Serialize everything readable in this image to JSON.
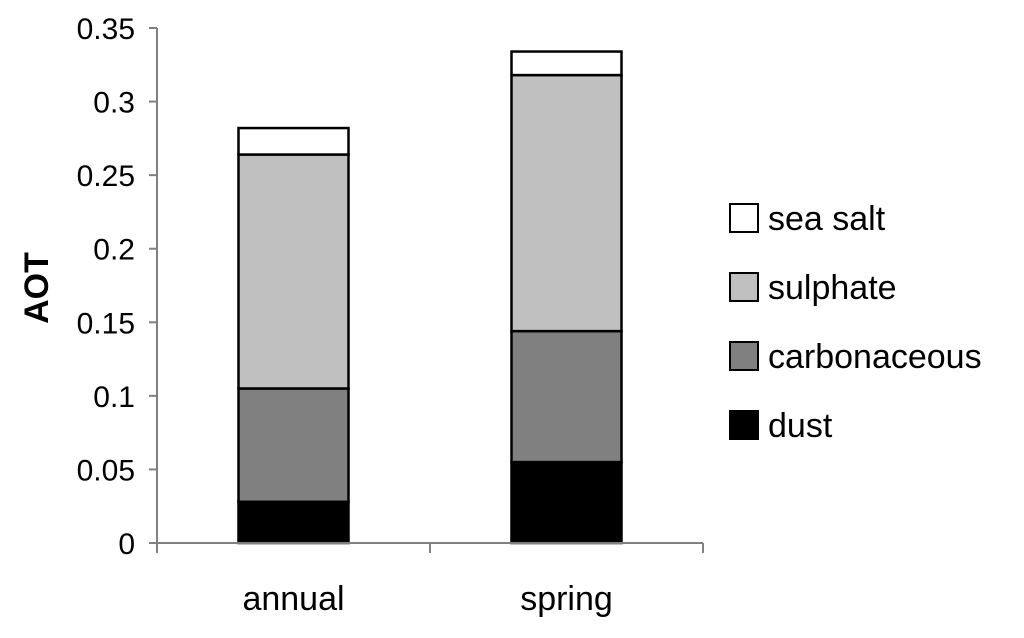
{
  "chart_data": {
    "type": "bar",
    "stacked": true,
    "categories": [
      "annual",
      "spring"
    ],
    "series": [
      {
        "name": "dust",
        "color": "#000000",
        "values": [
          0.028,
          0.055
        ]
      },
      {
        "name": "carbonaceous",
        "color": "#808080",
        "values": [
          0.077,
          0.089
        ]
      },
      {
        "name": "sulphate",
        "color": "#c0c0c0",
        "values": [
          0.159,
          0.174
        ]
      },
      {
        "name": "sea salt",
        "color": "#ffffff",
        "values": [
          0.018,
          0.016
        ]
      }
    ],
    "ylabel": "AOT",
    "xlabel": "",
    "ylim": [
      0,
      0.35
    ],
    "yticks": [
      "0",
      "0.05",
      "0.1",
      "0.15",
      "0.2",
      "0.25",
      "0.3",
      "0.35"
    ],
    "ytick_values": [
      0,
      0.05,
      0.1,
      0.15,
      0.2,
      0.25,
      0.3,
      0.35
    ],
    "legend_position": "right",
    "legend_order": [
      "sea salt",
      "sulphate",
      "carbonaceous",
      "dust"
    ],
    "grid": false
  }
}
